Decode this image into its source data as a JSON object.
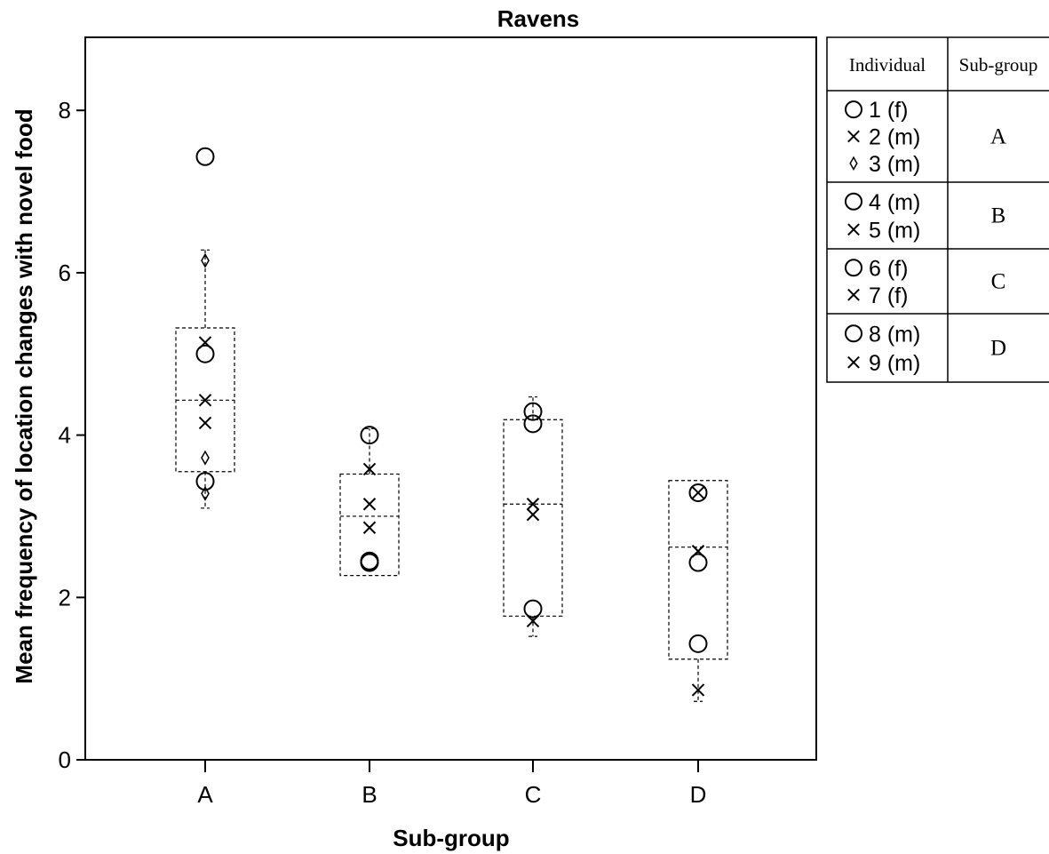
{
  "chart_data": {
    "type": "scatter",
    "title": "Ravens",
    "xlabel": "Sub-group",
    "ylabel": "Mean frequency of location changes with novel food",
    "categories": [
      "A",
      "B",
      "C",
      "D"
    ],
    "ylim": [
      0,
      8.9
    ],
    "yticks": [
      0,
      2,
      4,
      6,
      8
    ],
    "grid": false,
    "legend_placement": "right",
    "boxes": [
      {
        "category": "A",
        "whisker_low": 3.1,
        "q1": 3.55,
        "median": 4.43,
        "q3": 5.32,
        "whisker_high": 6.28
      },
      {
        "category": "B",
        "whisker_low": 2.27,
        "q1": 2.27,
        "median": 3.0,
        "q3": 3.52,
        "whisker_high": 4.08
      },
      {
        "category": "C",
        "whisker_low": 1.52,
        "q1": 1.77,
        "median": 3.15,
        "q3": 4.19,
        "whisker_high": 4.47
      },
      {
        "category": "D",
        "whisker_low": 0.72,
        "q1": 1.24,
        "median": 2.62,
        "q3": 3.44,
        "whisker_high": 3.44
      }
    ],
    "points": [
      {
        "category": "A",
        "marker": "circle",
        "y": 7.43
      },
      {
        "category": "A",
        "marker": "diamond",
        "y": 6.15
      },
      {
        "category": "A",
        "marker": "cross",
        "y": 5.14
      },
      {
        "category": "A",
        "marker": "circle",
        "y": 5.0
      },
      {
        "category": "A",
        "marker": "cross",
        "y": 4.43
      },
      {
        "category": "A",
        "marker": "cross",
        "y": 4.15
      },
      {
        "category": "A",
        "marker": "diamond",
        "y": 3.72
      },
      {
        "category": "A",
        "marker": "circle",
        "y": 3.43
      },
      {
        "category": "A",
        "marker": "diamond",
        "y": 3.28
      },
      {
        "category": "B",
        "marker": "circle",
        "y": 4.0
      },
      {
        "category": "B",
        "marker": "cross",
        "y": 3.58
      },
      {
        "category": "B",
        "marker": "cross",
        "y": 3.15
      },
      {
        "category": "B",
        "marker": "cross",
        "y": 2.86
      },
      {
        "category": "B",
        "marker": "circle",
        "y": 2.45
      },
      {
        "category": "B",
        "marker": "circle",
        "y": 2.43
      },
      {
        "category": "C",
        "marker": "circle",
        "y": 4.29
      },
      {
        "category": "C",
        "marker": "circle",
        "y": 4.14
      },
      {
        "category": "C",
        "marker": "cross",
        "y": 3.15
      },
      {
        "category": "C",
        "marker": "cross",
        "y": 3.02
      },
      {
        "category": "C",
        "marker": "circle",
        "y": 1.86
      },
      {
        "category": "C",
        "marker": "cross",
        "y": 1.71
      },
      {
        "category": "D",
        "marker": "circle",
        "y": 3.29
      },
      {
        "category": "D",
        "marker": "cross",
        "y": 3.29
      },
      {
        "category": "D",
        "marker": "cross",
        "y": 2.57
      },
      {
        "category": "D",
        "marker": "circle",
        "y": 2.43
      },
      {
        "category": "D",
        "marker": "circle",
        "y": 1.43
      },
      {
        "category": "D",
        "marker": "cross",
        "y": 0.86
      }
    ]
  },
  "legend": {
    "header_individual": "Individual",
    "header_subgroup": "Sub-group",
    "groups": [
      {
        "subgroup": "A",
        "rows": [
          {
            "marker": "circle",
            "label": "1 (f)"
          },
          {
            "marker": "cross",
            "label": "2 (m)"
          },
          {
            "marker": "diamond",
            "label": "3 (m)"
          }
        ]
      },
      {
        "subgroup": "B",
        "rows": [
          {
            "marker": "circle",
            "label": "4 (m)"
          },
          {
            "marker": "cross",
            "label": "5 (m)"
          }
        ]
      },
      {
        "subgroup": "C",
        "rows": [
          {
            "marker": "circle",
            "label": "6 (f)"
          },
          {
            "marker": "cross",
            "label": "7 (f)"
          }
        ]
      },
      {
        "subgroup": "D",
        "rows": [
          {
            "marker": "circle",
            "label": "8 (m)"
          },
          {
            "marker": "cross",
            "label": "9 (m)"
          }
        ]
      }
    ]
  }
}
